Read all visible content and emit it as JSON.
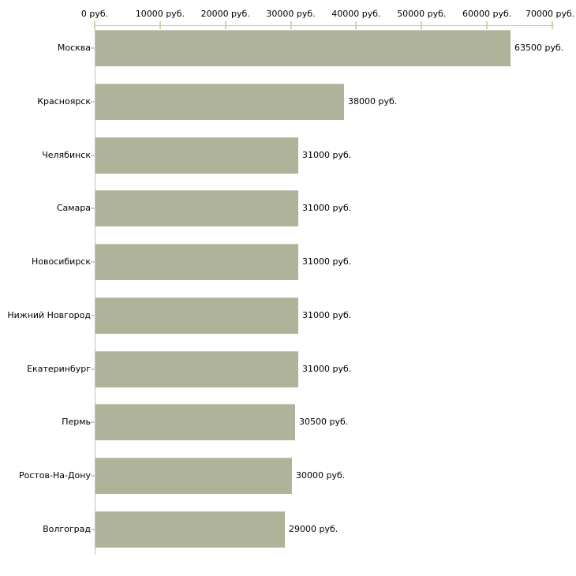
{
  "chart_data": {
    "type": "bar",
    "orientation": "horizontal",
    "title": "",
    "xlabel": "",
    "ylabel": "",
    "xlim": [
      0,
      70000
    ],
    "grid": false,
    "legend": false,
    "categories": [
      "Москва",
      "Красноярск",
      "Челябинск",
      "Самара",
      "Новосибирск",
      "Нижний Новгород",
      "Екатеринбург",
      "Пермь",
      "Ростов-На-Дону",
      "Волгоград"
    ],
    "values": [
      63500,
      38000,
      31000,
      31000,
      31000,
      31000,
      31000,
      30500,
      30000,
      29000
    ],
    "value_labels": [
      "63500 руб.",
      "38000 руб.",
      "31000 руб.",
      "31000 руб.",
      "31000 руб.",
      "31000 руб.",
      "31000 руб.",
      "30500 руб.",
      "30000 руб.",
      "29000 руб."
    ],
    "x_ticks": [
      0,
      10000,
      20000,
      30000,
      40000,
      50000,
      60000,
      70000
    ],
    "x_tick_labels": [
      "0 руб.",
      "10000 руб.",
      "20000 руб.",
      "30000 руб.",
      "40000 руб.",
      "50000 руб.",
      "60000 руб.",
      "70000 руб."
    ],
    "colors": {
      "bar_fill": "#aeb399",
      "bar_top_edge": "#c7cab7",
      "axis_line": "#c1c1c1",
      "tick_mark": "#d3d3af",
      "text": "#000000",
      "background": "#ffffff"
    }
  }
}
